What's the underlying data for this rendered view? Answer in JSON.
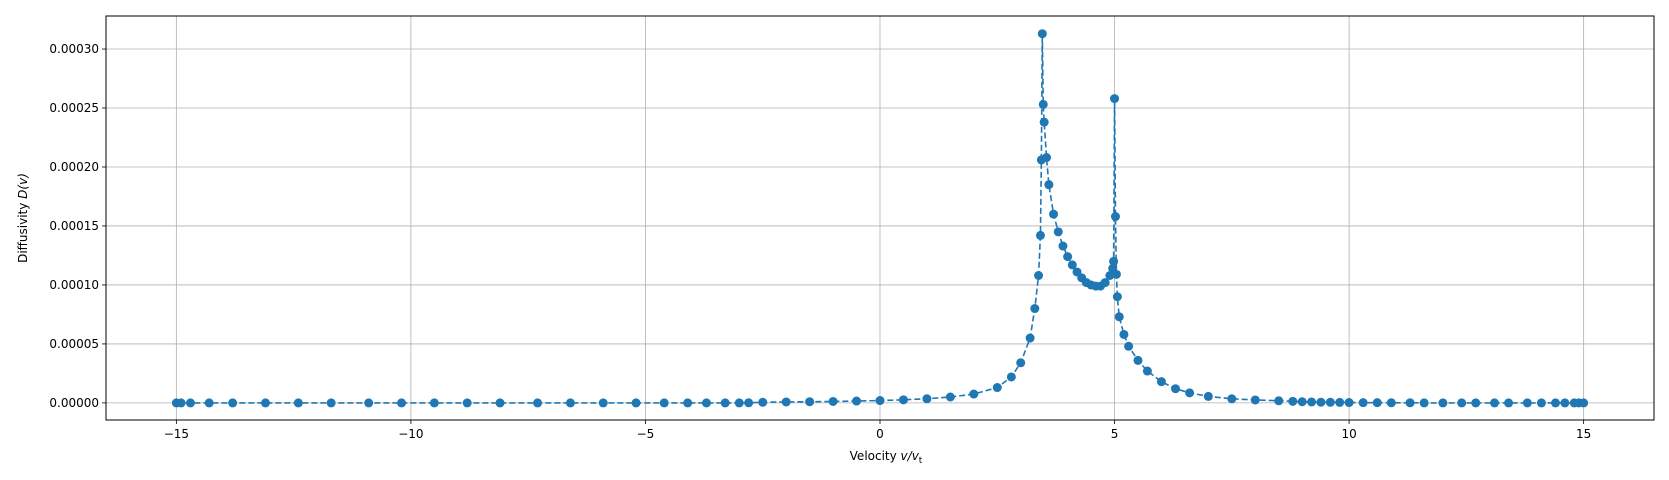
{
  "chart_data": {
    "type": "line",
    "xlabel_main": "Velocity ",
    "xlabel_math": "v/v",
    "xlabel_sub": "t",
    "ylabel_main": "Diffusivity ",
    "ylabel_math": "D(v)",
    "xlim": [
      -16.5,
      16.5
    ],
    "ylim": [
      -1.45e-05,
      0.000328
    ],
    "xticks": [
      -15,
      -10,
      -5,
      0,
      5,
      10,
      15
    ],
    "xtick_labels": [
      "−15",
      "−10",
      "−5",
      "0",
      "5",
      "10",
      "15"
    ],
    "yticks": [
      0,
      5e-05,
      0.0001,
      0.00015,
      0.0002,
      0.00025,
      0.0003
    ],
    "ytick_labels": [
      "0.00000",
      "0.00005",
      "0.00010",
      "0.00015",
      "0.00020",
      "0.00025",
      "0.00030"
    ],
    "grid": true,
    "series": [
      {
        "color": "#1f77b4",
        "line_style": "dashed",
        "marker": "circle",
        "x": [
          -15.0,
          -14.9,
          -14.7,
          -14.3,
          -13.8,
          -13.1,
          -12.4,
          -11.7,
          -10.9,
          -10.2,
          -9.5,
          -8.8,
          -8.1,
          -7.3,
          -6.6,
          -5.9,
          -5.2,
          -4.6,
          -4.1,
          -3.7,
          -3.3,
          -3.0,
          -2.8,
          -2.5,
          -2.0,
          -1.5,
          -1.0,
          -0.5,
          0.0,
          0.5,
          1.0,
          1.5,
          2.0,
          2.5,
          2.8,
          3.0,
          3.2,
          3.3,
          3.38,
          3.42,
          3.44,
          3.46,
          3.48,
          3.5,
          3.55,
          3.6,
          3.7,
          3.8,
          3.9,
          4.0,
          4.1,
          4.2,
          4.3,
          4.4,
          4.5,
          4.6,
          4.7,
          4.8,
          4.9,
          4.96,
          4.98,
          5.0,
          5.02,
          5.04,
          5.06,
          5.1,
          5.2,
          5.3,
          5.5,
          5.7,
          6.0,
          6.3,
          6.6,
          7.0,
          7.5,
          8.0,
          8.5,
          8.8,
          9.0,
          9.2,
          9.4,
          9.6,
          9.8,
          10.0,
          10.3,
          10.6,
          10.9,
          11.3,
          11.6,
          12.0,
          12.4,
          12.7,
          13.1,
          13.4,
          13.8,
          14.1,
          14.4,
          14.6,
          14.8,
          14.9,
          15.0
        ],
        "y": [
          0,
          0,
          0,
          0,
          0,
          0,
          0,
          0,
          0,
          0,
          0,
          0,
          0,
          0,
          0,
          0,
          0,
          0,
          0,
          0,
          0,
          0,
          1e-07,
          5e-07,
          8e-07,
          1e-06,
          1.2e-06,
          1.6e-06,
          2e-06,
          2.6e-06,
          3.5e-06,
          5e-06,
          7.5e-06,
          1.3e-05,
          2.2e-05,
          3.4e-05,
          5.5e-05,
          8e-05,
          0.000108,
          0.000142,
          0.000206,
          0.000313,
          0.000253,
          0.000238,
          0.000208,
          0.000185,
          0.00016,
          0.000145,
          0.000133,
          0.000124,
          0.000117,
          0.000111,
          0.000106,
          0.000102,
          0.0001,
          9.9e-05,
          9.9e-05,
          0.000102,
          0.000108,
          0.000114,
          0.00012,
          0.000258,
          0.000158,
          0.000109,
          9e-05,
          7.3e-05,
          5.8e-05,
          4.8e-05,
          3.6e-05,
          2.7e-05,
          1.8e-05,
          1.2e-05,
          8.5e-06,
          5.5e-06,
          3.5e-06,
          2.5e-06,
          1.8e-06,
          1.3e-06,
          1e-06,
          8e-07,
          6e-07,
          5e-07,
          4e-07,
          3e-07,
          2e-07,
          2e-07,
          1e-07,
          1e-07,
          0,
          0,
          0,
          0,
          0,
          0,
          0,
          0,
          0,
          0,
          0,
          0,
          0
        ]
      }
    ]
  }
}
